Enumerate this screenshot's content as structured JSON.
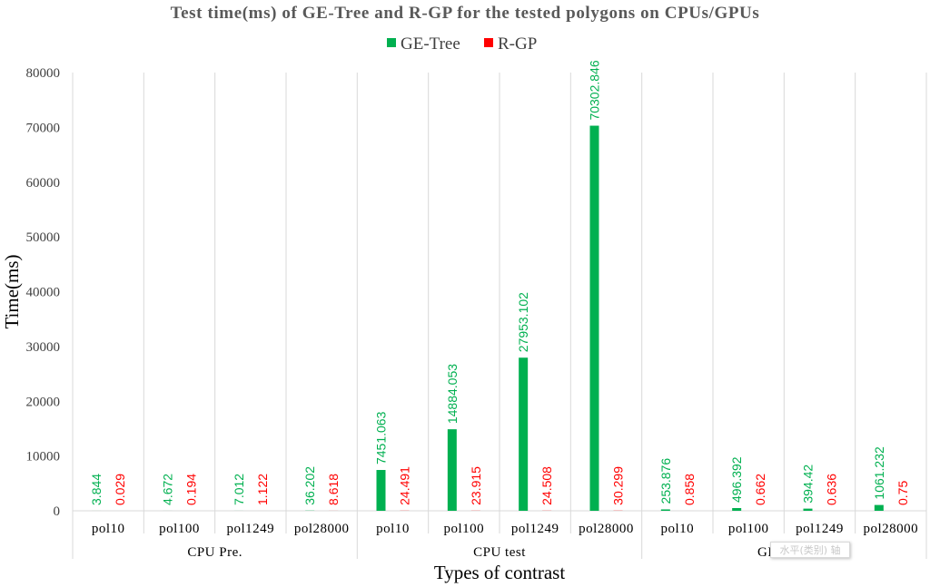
{
  "chart_data": {
    "type": "bar",
    "title": "Test time(ms) of GE-Tree and R-GP for the tested polygons on CPUs/GPUs",
    "xlabel": "Types of contrast",
    "ylabel": "Time(ms)",
    "ylim": [
      0,
      80000
    ],
    "yticks": [
      0,
      10000,
      20000,
      30000,
      40000,
      50000,
      60000,
      70000,
      80000
    ],
    "legend_position": "top-center",
    "groups": [
      {
        "label": "CPU Pre.",
        "categories": [
          "pol10",
          "pol100",
          "pol1249",
          "pol28000"
        ]
      },
      {
        "label": "CPU test",
        "categories": [
          "pol10",
          "pol100",
          "pol1249",
          "pol28000"
        ]
      },
      {
        "label": "GPU test",
        "categories": [
          "pol10",
          "pol100",
          "pol1249",
          "pol28000"
        ]
      }
    ],
    "series": [
      {
        "name": "GE-Tree",
        "color": "#00b050",
        "values": [
          3.844,
          4.672,
          7.012,
          36.202,
          7451.063,
          14884.053,
          27953.102,
          70302.846,
          253.876,
          496.392,
          394.42,
          1061.232
        ],
        "labels": [
          "3.844",
          "4.672",
          "7.012",
          "36.202",
          "7451.063",
          "14884.053",
          "27953.102",
          "70302.846",
          "253.876",
          "496.392",
          "394.42",
          "1061.232"
        ]
      },
      {
        "name": "R-GP",
        "color": "#ff0000",
        "values": [
          0.029,
          0.194,
          1.122,
          8.618,
          24.491,
          23.915,
          24.508,
          30.299,
          0.858,
          0.662,
          0.636,
          0.75
        ],
        "labels": [
          "0.029",
          "0.194",
          "1.122",
          "8.618",
          "24.491",
          "23.915",
          "24.508",
          "30.299",
          "0.858",
          "0.662",
          "0.636",
          "0.75"
        ]
      }
    ]
  },
  "overlay": {
    "tooltip_text": "水平(类别) 轴"
  }
}
